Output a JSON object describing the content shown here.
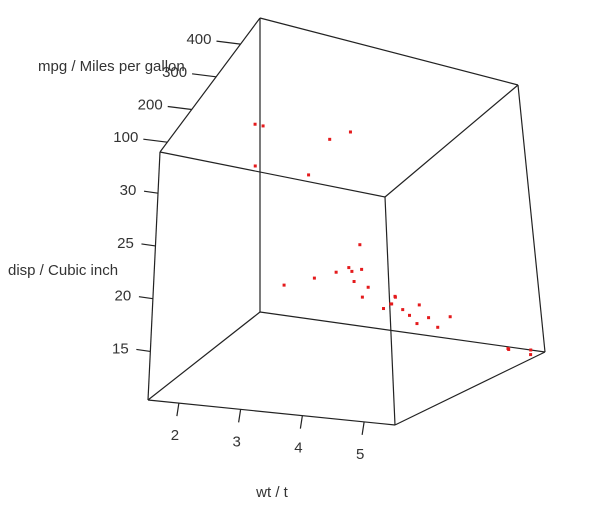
{
  "chart_data": {
    "type": "scatter",
    "subtype": "scatter3d",
    "x_axis": {
      "label": "wt / t",
      "ticks": [
        2,
        3,
        4,
        5
      ]
    },
    "y_axis": {
      "label": "mpg / Miles per gallon",
      "ticks": [
        100,
        200,
        300,
        400
      ]
    },
    "z_axis": {
      "label": "disp / Cubic inch",
      "ticks": [
        15,
        20,
        25,
        30
      ]
    },
    "point_color": "#e41a1c",
    "points": [
      {
        "x": 3.0,
        "y": 110,
        "z": 33
      },
      {
        "x": 3.6,
        "y": 175,
        "z": 31
      },
      {
        "x": 2.4,
        "y": 240,
        "z": 32.5
      },
      {
        "x": 2.6,
        "y": 225,
        "z": 33
      },
      {
        "x": 3.4,
        "y": 290,
        "z": 31
      },
      {
        "x": 3.5,
        "y": 340,
        "z": 30.5
      },
      {
        "x": 3.5,
        "y": 110,
        "z": 22
      },
      {
        "x": 3.8,
        "y": 150,
        "z": 22
      },
      {
        "x": 4.3,
        "y": 200,
        "z": 24.5
      },
      {
        "x": 4.4,
        "y": 160,
        "z": 22
      },
      {
        "x": 3.9,
        "y": 200,
        "z": 21.5
      },
      {
        "x": 4.0,
        "y": 230,
        "z": 21
      },
      {
        "x": 3.8,
        "y": 260,
        "z": 20.5
      },
      {
        "x": 3.9,
        "y": 280,
        "z": 20
      },
      {
        "x": 4.7,
        "y": 190,
        "z": 19
      },
      {
        "x": 4.6,
        "y": 230,
        "z": 18.5
      },
      {
        "x": 4.4,
        "y": 270,
        "z": 17.5
      },
      {
        "x": 4.3,
        "y": 300,
        "z": 17.5
      },
      {
        "x": 4.8,
        "y": 300,
        "z": 16
      },
      {
        "x": 3.5,
        "y": 380,
        "z": 16
      },
      {
        "x": 3.9,
        "y": 380,
        "z": 15.5
      },
      {
        "x": 3.6,
        "y": 340,
        "z": 16
      },
      {
        "x": 4.0,
        "y": 380,
        "z": 14.5
      },
      {
        "x": 4.3,
        "y": 340,
        "z": 15
      },
      {
        "x": 4.1,
        "y": 400,
        "z": 13
      },
      {
        "x": 4.3,
        "y": 420,
        "z": 12.5
      },
      {
        "x": 4.0,
        "y": 430,
        "z": 14
      },
      {
        "x": 4.7,
        "y": 380,
        "z": 14.5
      },
      {
        "x": 5.2,
        "y": 440,
        "z": 11
      },
      {
        "x": 5.3,
        "y": 420,
        "z": 11.5
      },
      {
        "x": 5.4,
        "y": 460,
        "z": 10.4
      },
      {
        "x": 5.3,
        "y": 480,
        "z": 10.4
      }
    ]
  }
}
